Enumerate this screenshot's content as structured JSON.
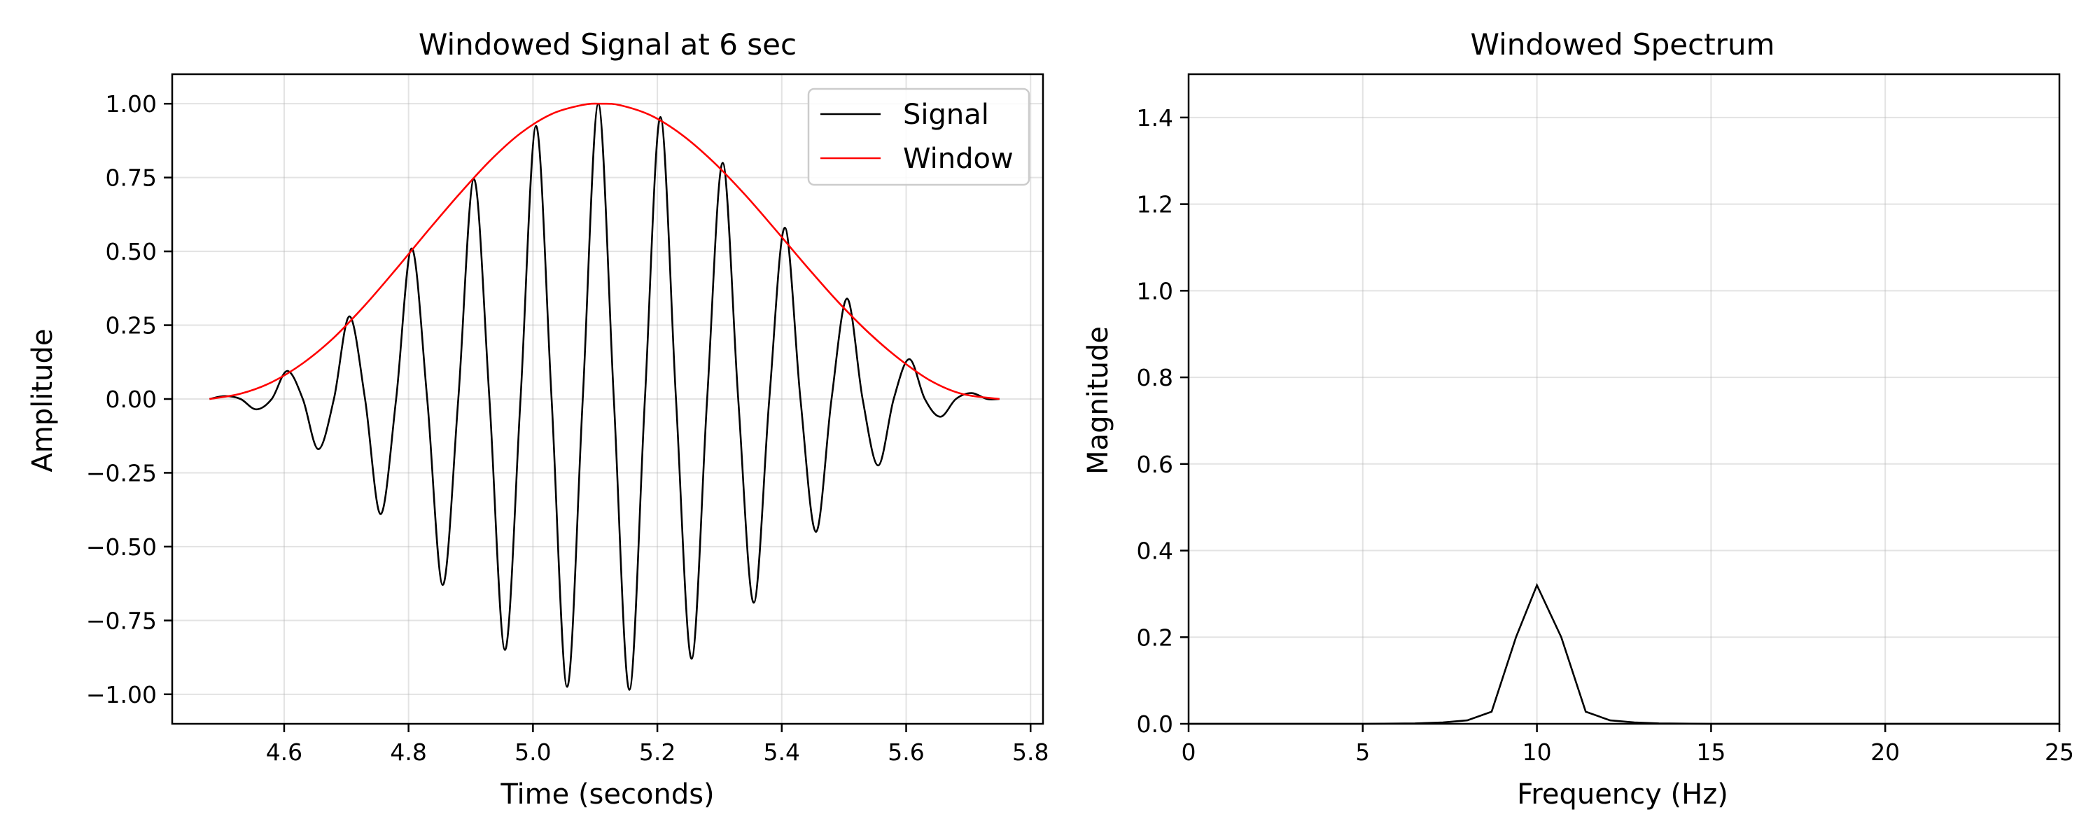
{
  "chart_data": [
    {
      "type": "line",
      "title": "Windowed Signal at 6 sec",
      "xlabel": "Time (seconds)",
      "ylabel": "Amplitude",
      "xlim": [
        4.42,
        5.82
      ],
      "ylim": [
        -1.1,
        1.1
      ],
      "xticks": [
        4.6,
        4.8,
        5.0,
        5.2,
        5.4,
        5.6,
        5.8
      ],
      "xtick_labels": [
        "4.6",
        "4.8",
        "5.0",
        "5.2",
        "5.4",
        "5.6",
        "5.8"
      ],
      "yticks": [
        -1.0,
        -0.75,
        -0.5,
        -0.25,
        0.0,
        0.25,
        0.5,
        0.75,
        1.0
      ],
      "ytick_labels": [
        "−1.00",
        "−0.75",
        "−0.50",
        "−0.25",
        "0.00",
        "0.25",
        "0.50",
        "0.75",
        "1.00"
      ],
      "grid": true,
      "legend": "top-right",
      "series": [
        {
          "name": "Signal",
          "color": "#000000",
          "x": [
            4.48,
            4.505,
            4.53,
            4.555,
            4.58,
            4.605,
            4.63,
            4.655,
            4.68,
            4.705,
            4.73,
            4.755,
            4.78,
            4.805,
            4.83,
            4.855,
            4.88,
            4.905,
            4.93,
            4.955,
            4.98,
            5.005,
            5.03,
            5.055,
            5.08,
            5.105,
            5.13,
            5.155,
            5.18,
            5.205,
            5.23,
            5.255,
            5.28,
            5.305,
            5.33,
            5.355,
            5.38,
            5.405,
            5.43,
            5.455,
            5.48,
            5.505,
            5.53,
            5.555,
            5.58,
            5.605,
            5.63,
            5.655,
            5.68,
            5.705,
            5.73,
            5.75
          ],
          "y": [
            0.0,
            0.01,
            0.0,
            -0.035,
            0.0,
            0.095,
            0.0,
            -0.17,
            0.0,
            0.28,
            0.0,
            -0.39,
            0.0,
            0.51,
            0.0,
            -0.63,
            0.0,
            0.745,
            0.0,
            -0.85,
            0.0,
            0.925,
            0.0,
            -0.975,
            0.0,
            1.0,
            0.0,
            -0.985,
            0.0,
            0.955,
            0.0,
            -0.88,
            0.0,
            0.8,
            0.0,
            -0.69,
            0.0,
            0.58,
            0.0,
            -0.45,
            0.0,
            0.34,
            0.0,
            -0.225,
            0.0,
            0.135,
            0.0,
            -0.06,
            0.0,
            0.02,
            0.0,
            0.0
          ]
        },
        {
          "name": "Window",
          "color": "#ff0000",
          "x": [
            4.48,
            4.53,
            4.58,
            4.63,
            4.68,
            4.73,
            4.78,
            4.83,
            4.88,
            4.93,
            4.98,
            5.03,
            5.08,
            5.11,
            5.14,
            5.19,
            5.24,
            5.29,
            5.34,
            5.39,
            5.44,
            5.49,
            5.54,
            5.59,
            5.64,
            5.69,
            5.75
          ],
          "y": [
            0.0,
            0.018,
            0.057,
            0.121,
            0.208,
            0.318,
            0.44,
            0.567,
            0.69,
            0.805,
            0.9,
            0.965,
            0.996,
            1.0,
            0.995,
            0.96,
            0.894,
            0.803,
            0.694,
            0.573,
            0.449,
            0.33,
            0.224,
            0.134,
            0.061,
            0.017,
            0.0
          ]
        }
      ]
    },
    {
      "type": "line",
      "title": "Windowed Spectrum",
      "xlabel": "Frequency (Hz)",
      "ylabel": "Magnitude",
      "xlim": [
        0,
        25
      ],
      "ylim": [
        0,
        1.5
      ],
      "xticks": [
        0,
        5,
        10,
        15,
        20,
        25
      ],
      "xtick_labels": [
        "0",
        "5",
        "10",
        "15",
        "20",
        "25"
      ],
      "yticks": [
        0.0,
        0.2,
        0.4,
        0.6,
        0.8,
        1.0,
        1.2,
        1.4
      ],
      "ytick_labels": [
        "0.0",
        "0.2",
        "0.4",
        "0.6",
        "0.8",
        "1.0",
        "1.2",
        "1.4"
      ],
      "grid": true,
      "series": [
        {
          "color": "#000000",
          "x": [
            0,
            5,
            6.5,
            7.3,
            8.0,
            8.7,
            9.4,
            10.0,
            10.7,
            11.4,
            12.1,
            12.8,
            13.5,
            15,
            20,
            25
          ],
          "y": [
            0,
            0,
            0.001,
            0.003,
            0.008,
            0.028,
            0.2,
            0.32,
            0.2,
            0.028,
            0.008,
            0.003,
            0.001,
            0,
            0,
            0
          ]
        }
      ]
    }
  ]
}
